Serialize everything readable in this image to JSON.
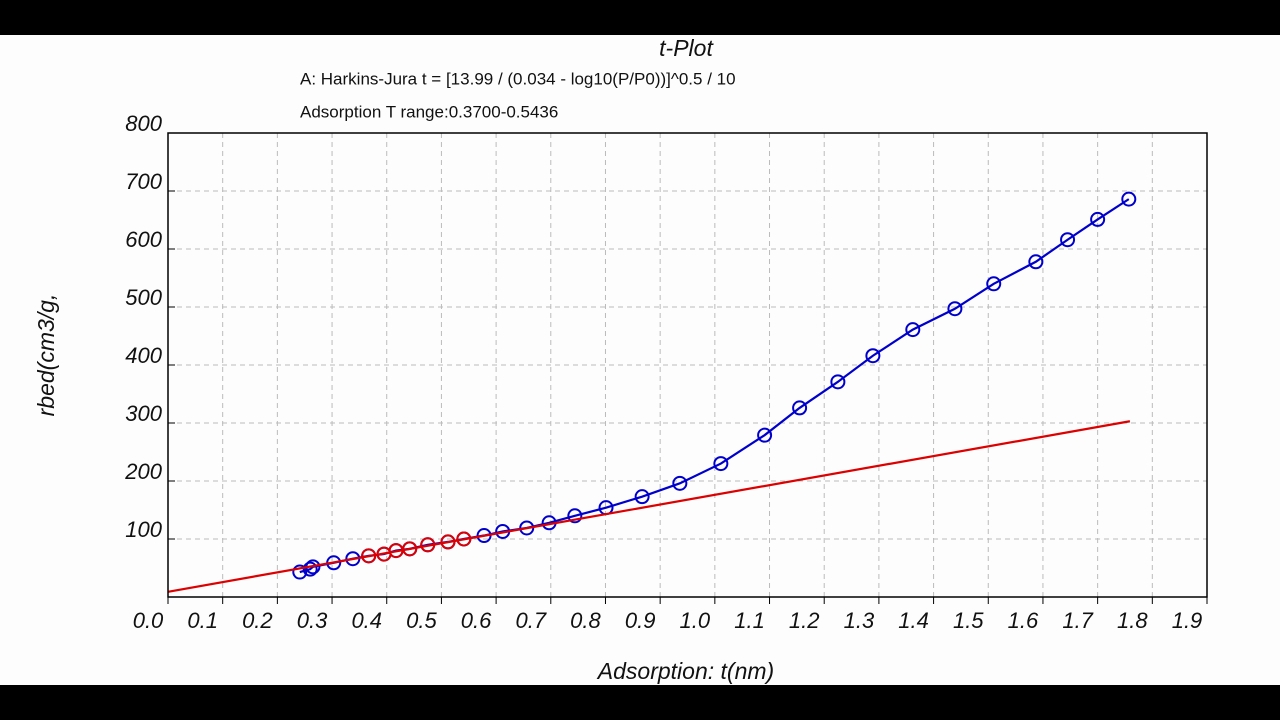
{
  "chart_data": {
    "type": "line",
    "title": "t-Plot",
    "subtitle": [
      "A: Harkins-Jura t = [13.99 / (0.034 - log10(P/P0))]^0.5 / 10",
      "Adsorption T range:0.3700-0.5436"
    ],
    "x_label": "Adsorption: t(nm)",
    "y_label": "rbed(cm3/g,",
    "xlim": [
      0,
      1.9
    ],
    "ylim": [
      0,
      800
    ],
    "xticks": [
      {
        "value": 0,
        "label": "0.0"
      },
      0.1,
      0.2,
      0.3,
      0.4,
      0.5,
      0.6,
      0.7,
      0.8,
      0.9,
      {
        "value": 1,
        "label": "1.0"
      },
      1.1,
      1.2,
      1.3,
      1.4,
      1.5,
      1.6,
      1.7,
      1.8,
      1.9
    ],
    "yticks": [
      100,
      200,
      300,
      400,
      500,
      600,
      700,
      800
    ],
    "grid": true,
    "series": [
      {
        "color": "#0000cc",
        "markers": true,
        "line": true,
        "x": [
          0.241,
          0.26,
          0.265,
          0.303,
          0.338,
          0.367,
          0.395,
          0.417,
          0.442,
          0.475,
          0.512,
          0.541,
          0.578,
          0.612,
          0.656,
          0.697,
          0.744,
          0.801,
          0.867,
          0.936,
          1.011,
          1.091,
          1.155,
          1.225,
          1.289,
          1.362,
          1.439,
          1.51,
          1.587,
          1.645,
          1.7,
          1.757
        ],
        "values": [
          43,
          48,
          52,
          59,
          66,
          71,
          74,
          80,
          83,
          90,
          95,
          100,
          106,
          113,
          119,
          128,
          140,
          154,
          173,
          196,
          230,
          279,
          326,
          371,
          416,
          461,
          497,
          540,
          578,
          616,
          651,
          686
        ]
      },
      {
        "color": "#dd0000",
        "markers": false,
        "line": true,
        "x": [
          0,
          1.759
        ],
        "values": [
          9,
          303
        ]
      },
      {
        "color": "#dd0000",
        "markers": true,
        "line": false,
        "x": [
          0.367,
          0.395,
          0.417,
          0.442,
          0.475,
          0.512,
          0.541
        ],
        "values": [
          71,
          74,
          80,
          83,
          90,
          95,
          100
        ]
      }
    ]
  }
}
